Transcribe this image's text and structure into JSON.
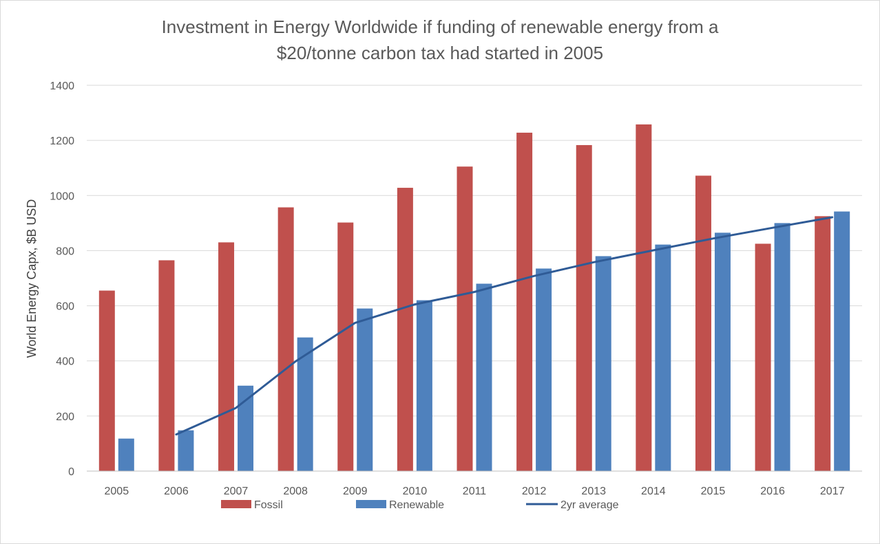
{
  "chart_data": {
    "type": "bar",
    "title": "Investment in Energy Worldwide if funding of renewable energy from a",
    "subtitle": "$20/tonne carbon tax had started in 2005",
    "xlabel": "",
    "ylabel": "World Energy Capx, $B USD",
    "ylim": [
      0,
      1400
    ],
    "yticks": [
      "0",
      "200",
      "400",
      "600",
      "800",
      "1000",
      "1200",
      "1400"
    ],
    "grid": true,
    "legend_position": "bottom",
    "categories": [
      "2005",
      "2006",
      "2007",
      "2008",
      "2009",
      "2010",
      "2011",
      "2012",
      "2013",
      "2014",
      "2015",
      "2016",
      "2017"
    ],
    "series": [
      {
        "name": "Fossil",
        "type": "bar",
        "color": "#c0504d",
        "values": [
          655,
          765,
          830,
          957,
          902,
          1028,
          1105,
          1228,
          1183,
          1258,
          1072,
          825,
          925
        ]
      },
      {
        "name": "Renewable",
        "type": "bar",
        "color": "#4f81bd",
        "values": [
          118,
          148,
          310,
          485,
          590,
          620,
          680,
          735,
          780,
          822,
          865,
          900,
          942
        ]
      },
      {
        "name": "2yr average",
        "type": "line",
        "color": "#2f5b96",
        "values": [
          null,
          133,
          229,
          398,
          538,
          605,
          650,
          708,
          758,
          801,
          844,
          883,
          921
        ]
      }
    ]
  }
}
